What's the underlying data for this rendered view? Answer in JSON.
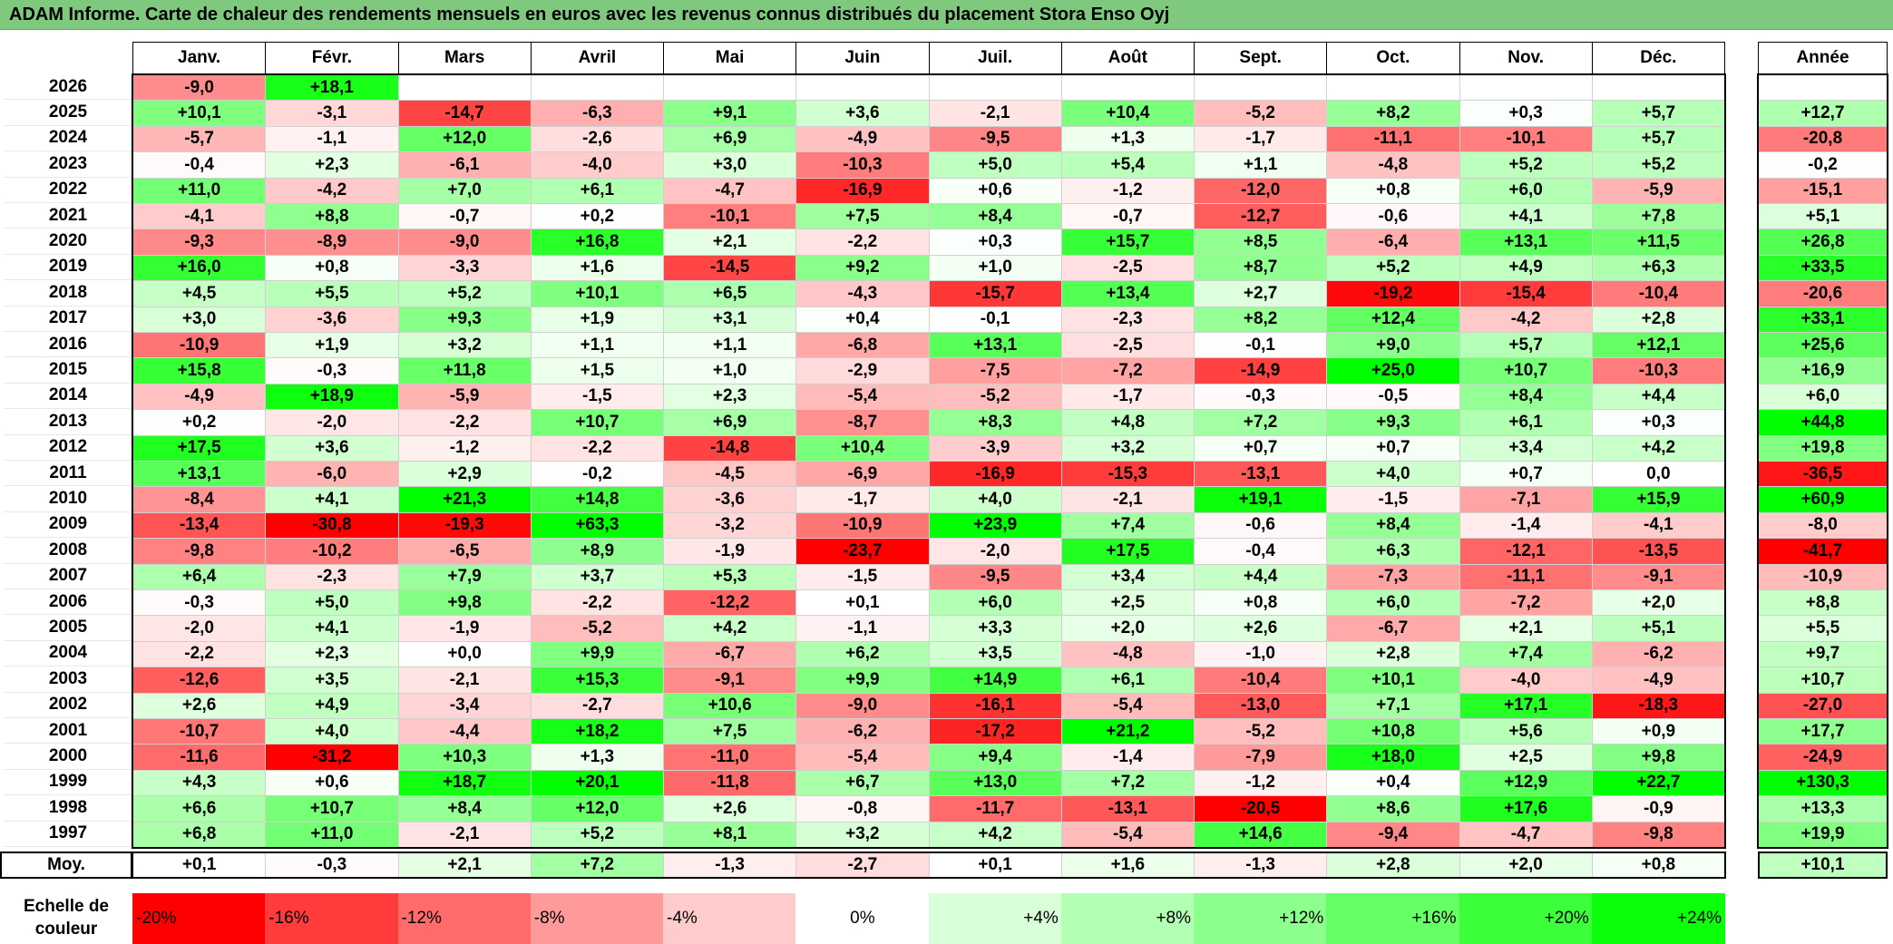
{
  "title": "ADAM Informe. Carte de chaleur des rendements mensuels en euros avec les revenus connus distribués du placement Stora Enso Oyj",
  "months": [
    "Janv.",
    "Févr.",
    "Mars",
    "Avril",
    "Mai",
    "Juin",
    "Juil.",
    "Août",
    "Sept.",
    "Oct.",
    "Nov.",
    "Déc."
  ],
  "year_header": "Année",
  "avg_label": "Moy.",
  "scale_label_line1": "Echelle de",
  "scale_label_line2": "couleur",
  "chart_data": {
    "type": "heatmap",
    "rows": [
      {
        "year": "2026",
        "values": [
          "-9,0",
          "+18,1",
          "",
          "",
          "",
          "",
          "",
          "",
          "",
          "",
          "",
          ""
        ],
        "annual": ""
      },
      {
        "year": "2025",
        "values": [
          "+10,1",
          "-3,1",
          "-14,7",
          "-6,3",
          "+9,1",
          "+3,6",
          "-2,1",
          "+10,4",
          "-5,2",
          "+8,2",
          "+0,3",
          "+5,7"
        ],
        "annual": "+12,7"
      },
      {
        "year": "2024",
        "values": [
          "-5,7",
          "-1,1",
          "+12,0",
          "-2,6",
          "+6,9",
          "-4,9",
          "-9,5",
          "+1,3",
          "-1,7",
          "-11,1",
          "-10,1",
          "+5,7"
        ],
        "annual": "-20,8"
      },
      {
        "year": "2023",
        "values": [
          "-0,4",
          "+2,3",
          "-6,1",
          "-4,0",
          "+3,0",
          "-10,3",
          "+5,0",
          "+5,4",
          "+1,1",
          "-4,8",
          "+5,2",
          "+5,2"
        ],
        "annual": "-0,2"
      },
      {
        "year": "2022",
        "values": [
          "+11,0",
          "-4,2",
          "+7,0",
          "+6,1",
          "-4,7",
          "-16,9",
          "+0,6",
          "-1,2",
          "-12,0",
          "+0,8",
          "+6,0",
          "-5,9"
        ],
        "annual": "-15,1"
      },
      {
        "year": "2021",
        "values": [
          "-4,1",
          "+8,8",
          "-0,7",
          "+0,2",
          "-10,1",
          "+7,5",
          "+8,4",
          "-0,7",
          "-12,7",
          "-0,6",
          "+4,1",
          "+7,8"
        ],
        "annual": "+5,1"
      },
      {
        "year": "2020",
        "values": [
          "-9,3",
          "-8,9",
          "-9,0",
          "+16,8",
          "+2,1",
          "-2,2",
          "+0,3",
          "+15,7",
          "+8,5",
          "-6,4",
          "+13,1",
          "+11,5"
        ],
        "annual": "+26,8"
      },
      {
        "year": "2019",
        "values": [
          "+16,0",
          "+0,8",
          "-3,3",
          "+1,6",
          "-14,5",
          "+9,2",
          "+1,0",
          "-2,5",
          "+8,7",
          "+5,2",
          "+4,9",
          "+6,3"
        ],
        "annual": "+33,5"
      },
      {
        "year": "2018",
        "values": [
          "+4,5",
          "+5,5",
          "+5,2",
          "+10,1",
          "+6,5",
          "-4,3",
          "-15,7",
          "+13,4",
          "+2,7",
          "-19,2",
          "-15,4",
          "-10,4"
        ],
        "annual": "-20,6"
      },
      {
        "year": "2017",
        "values": [
          "+3,0",
          "-3,6",
          "+9,3",
          "+1,9",
          "+3,1",
          "+0,4",
          "-0,1",
          "-2,3",
          "+8,2",
          "+12,4",
          "-4,2",
          "+2,8"
        ],
        "annual": "+33,1"
      },
      {
        "year": "2016",
        "values": [
          "-10,9",
          "+1,9",
          "+3,2",
          "+1,1",
          "+1,1",
          "-6,8",
          "+13,1",
          "-2,5",
          "-0,1",
          "+9,0",
          "+5,7",
          "+12,1"
        ],
        "annual": "+25,6"
      },
      {
        "year": "2015",
        "values": [
          "+15,8",
          "-0,3",
          "+11,8",
          "+1,5",
          "+1,0",
          "-2,9",
          "-7,5",
          "-7,2",
          "-14,9",
          "+25,0",
          "+10,7",
          "-10,3"
        ],
        "annual": "+16,9"
      },
      {
        "year": "2014",
        "values": [
          "-4,9",
          "+18,9",
          "-5,9",
          "-1,5",
          "+2,3",
          "-5,4",
          "-5,2",
          "-1,7",
          "-0,3",
          "-0,5",
          "+8,4",
          "+4,4"
        ],
        "annual": "+6,0"
      },
      {
        "year": "2013",
        "values": [
          "+0,2",
          "-2,0",
          "-2,2",
          "+10,7",
          "+6,9",
          "-8,7",
          "+8,3",
          "+4,8",
          "+7,2",
          "+9,3",
          "+6,1",
          "+0,3"
        ],
        "annual": "+44,8"
      },
      {
        "year": "2012",
        "values": [
          "+17,5",
          "+3,6",
          "-1,2",
          "-2,2",
          "-14,8",
          "+10,4",
          "-3,9",
          "+3,2",
          "+0,7",
          "+0,7",
          "+3,4",
          "+4,2"
        ],
        "annual": "+19,8"
      },
      {
        "year": "2011",
        "values": [
          "+13,1",
          "-6,0",
          "+2,9",
          "-0,2",
          "-4,5",
          "-6,9",
          "-16,9",
          "-15,3",
          "-13,1",
          "+4,0",
          "+0,7",
          "0,0"
        ],
        "annual": "-36,5"
      },
      {
        "year": "2010",
        "values": [
          "-8,4",
          "+4,1",
          "+21,3",
          "+14,8",
          "-3,6",
          "-1,7",
          "+4,0",
          "-2,1",
          "+19,1",
          "-1,5",
          "-7,1",
          "+15,9"
        ],
        "annual": "+60,9"
      },
      {
        "year": "2009",
        "values": [
          "-13,4",
          "-30,8",
          "-19,3",
          "+63,3",
          "-3,2",
          "-10,9",
          "+23,9",
          "+7,4",
          "-0,6",
          "+8,4",
          "-1,4",
          "-4,1"
        ],
        "annual": "-8,0"
      },
      {
        "year": "2008",
        "values": [
          "-9,8",
          "-10,2",
          "-6,5",
          "+8,9",
          "-1,9",
          "-23,7",
          "-2,0",
          "+17,5",
          "-0,4",
          "+6,3",
          "-12,1",
          "-13,5"
        ],
        "annual": "-41,7"
      },
      {
        "year": "2007",
        "values": [
          "+6,4",
          "-2,3",
          "+7,9",
          "+3,7",
          "+5,3",
          "-1,5",
          "-9,5",
          "+3,4",
          "+4,4",
          "-7,3",
          "-11,1",
          "-9,1"
        ],
        "annual": "-10,9"
      },
      {
        "year": "2006",
        "values": [
          "-0,3",
          "+5,0",
          "+9,8",
          "-2,2",
          "-12,2",
          "+0,1",
          "+6,0",
          "+2,5",
          "+0,8",
          "+6,0",
          "-7,2",
          "+2,0"
        ],
        "annual": "+8,8"
      },
      {
        "year": "2005",
        "values": [
          "-2,0",
          "+4,1",
          "-1,9",
          "-5,2",
          "+4,2",
          "-1,1",
          "+3,3",
          "+2,0",
          "+2,6",
          "-6,7",
          "+2,1",
          "+5,1"
        ],
        "annual": "+5,5"
      },
      {
        "year": "2004",
        "values": [
          "-2,2",
          "+2,3",
          "+0,0",
          "+9,9",
          "-6,7",
          "+6,2",
          "+3,5",
          "-4,8",
          "-1,0",
          "+2,8",
          "+7,4",
          "-6,2"
        ],
        "annual": "+9,7"
      },
      {
        "year": "2003",
        "values": [
          "-12,6",
          "+3,5",
          "-2,1",
          "+15,3",
          "-9,1",
          "+9,9",
          "+14,9",
          "+6,1",
          "-10,4",
          "+10,1",
          "-4,0",
          "-4,9"
        ],
        "annual": "+10,7"
      },
      {
        "year": "2002",
        "values": [
          "+2,6",
          "+4,9",
          "-3,4",
          "-2,7",
          "+10,6",
          "-9,0",
          "-16,1",
          "-5,4",
          "-13,0",
          "+7,1",
          "+17,1",
          "-18,3"
        ],
        "annual": "-27,0"
      },
      {
        "year": "2001",
        "values": [
          "-10,7",
          "+4,0",
          "-4,4",
          "+18,2",
          "+7,5",
          "-6,2",
          "-17,2",
          "+21,2",
          "-5,2",
          "+10,8",
          "+5,6",
          "+0,9"
        ],
        "annual": "+17,7"
      },
      {
        "year": "2000",
        "values": [
          "-11,6",
          "-31,2",
          "+10,3",
          "+1,3",
          "-11,0",
          "-5,4",
          "+9,4",
          "-1,4",
          "-7,9",
          "+18,0",
          "+2,5",
          "+9,8"
        ],
        "annual": "-24,9"
      },
      {
        "year": "1999",
        "values": [
          "+4,3",
          "+0,6",
          "+18,7",
          "+20,1",
          "-11,8",
          "+6,7",
          "+13,0",
          "+7,2",
          "-1,2",
          "+0,4",
          "+12,9",
          "+22,7"
        ],
        "annual": "+130,3"
      },
      {
        "year": "1998",
        "values": [
          "+6,6",
          "+10,7",
          "+8,4",
          "+12,0",
          "+2,6",
          "-0,8",
          "-11,7",
          "-13,1",
          "-20,5",
          "+8,6",
          "+17,6",
          "-0,9"
        ],
        "annual": "+13,3"
      },
      {
        "year": "1997",
        "values": [
          "+6,8",
          "+11,0",
          "-2,1",
          "+5,2",
          "+8,1",
          "+3,2",
          "+4,2",
          "-5,4",
          "+14,6",
          "-9,4",
          "-4,7",
          "-9,8"
        ],
        "annual": "+19,9"
      }
    ],
    "average": {
      "values": [
        "+0,1",
        "-0,3",
        "+2,1",
        "+7,2",
        "-1,3",
        "-2,7",
        "+0,1",
        "+1,6",
        "-1,3",
        "+2,8",
        "+2,0",
        "+0,8"
      ],
      "annual": "+10,1"
    },
    "scale": [
      "-20%",
      "-16%",
      "-12%",
      "-8%",
      "-4%",
      "0%",
      "+4%",
      "+8%",
      "+12%",
      "+16%",
      "+20%",
      "+24%"
    ],
    "scale_colors": [
      "#ff0000",
      "#ff3b3b",
      "#ff6b6b",
      "#ff9a9a",
      "#ffcccc",
      "#ffffff",
      "#d9ffd9",
      "#b3ffb3",
      "#8cff8c",
      "#66ff66",
      "#3cff3c",
      "#0bff0b"
    ],
    "color_range": [
      -20,
      24
    ]
  }
}
